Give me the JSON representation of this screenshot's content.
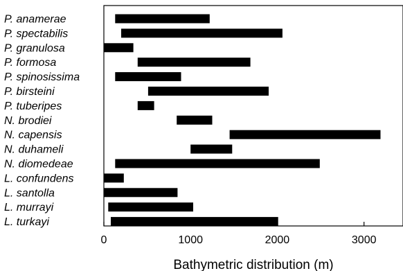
{
  "chart_data": {
    "type": "bar",
    "orientation": "horizontal",
    "title": "",
    "xlabel": "Bathymetric distribution (m)",
    "ylabel": "",
    "xlim": [
      0,
      3450
    ],
    "xticks": [
      0,
      1000,
      2000,
      3000
    ],
    "grid": false,
    "legend": "none",
    "bar_color": "#000000",
    "categories": [
      "P. anamerae",
      "P. spectabilis",
      "P. granulosa",
      "P. formosa",
      "P. spinosissima",
      "P. birsteini",
      "P. tuberipes",
      "N. brodiei",
      "N. capensis",
      "N. duhameli",
      "N. diomedeae",
      "L. confundens",
      "L. santolla",
      "L. murrayi",
      "L. turkayi"
    ],
    "ranges": [
      [
        130,
        1220
      ],
      [
        200,
        2060
      ],
      [
        0,
        340
      ],
      [
        390,
        1690
      ],
      [
        130,
        890
      ],
      [
        510,
        1900
      ],
      [
        390,
        580
      ],
      [
        840,
        1250
      ],
      [
        1450,
        3190
      ],
      [
        1000,
        1480
      ],
      [
        130,
        2490
      ],
      [
        0,
        230
      ],
      [
        0,
        850
      ],
      [
        50,
        1030
      ],
      [
        80,
        2010
      ]
    ]
  }
}
